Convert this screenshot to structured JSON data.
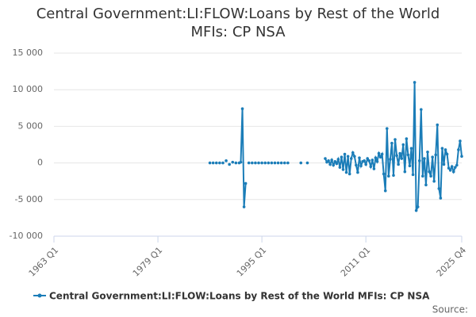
{
  "chart_data": {
    "type": "line",
    "title": "Central Government:LI:FLOW:Loans by Rest of the World MFIs: CP NSA",
    "source_label": "Source:",
    "xlim": [
      1963,
      2025.75
    ],
    "xticks": [
      {
        "value": 1963,
        "label": "1963 Q1"
      },
      {
        "value": 1979,
        "label": "1979 Q1"
      },
      {
        "value": 1995,
        "label": "1995 Q1"
      },
      {
        "value": 2011,
        "label": "2011 Q1"
      },
      {
        "value": 2025.75,
        "label": "2025 Q4"
      }
    ],
    "ylim": [
      -10000,
      15000
    ],
    "yticks": [
      {
        "value": -10000,
        "label": "-10 000"
      },
      {
        "value": -5000,
        "label": "-5 000"
      },
      0,
      {
        "value": 5000,
        "label": "5 000"
      },
      {
        "value": 10000,
        "label": "10 000"
      },
      {
        "value": 15000,
        "label": "15 000"
      }
    ],
    "grid": true,
    "x": [
      1987,
      1987.25,
      1987.5,
      1987.75,
      1988,
      1988.25,
      1988.5,
      1988.75,
      1989,
      1989.25,
      1989.5,
      1989.75,
      1990,
      1990.25,
      1990.5,
      1990.75,
      1991,
      1991.25,
      1991.5,
      1991.75,
      1992,
      1992.25,
      1992.5,
      1992.75,
      1993,
      1993.25,
      1993.5,
      1993.75,
      1994,
      1994.25,
      1994.5,
      1994.75,
      1995,
      1995.25,
      1995.5,
      1995.75,
      1996,
      1996.25,
      1996.5,
      1996.75,
      1997,
      1997.25,
      1997.5,
      1997.75,
      1998,
      1998.25,
      1998.5,
      1998.75,
      1999,
      1999.25,
      2001,
      2001.25,
      2002,
      2002.25,
      2004.75,
      2005,
      2005.25,
      2005.5,
      2005.75,
      2006,
      2006.25,
      2006.5,
      2006.75,
      2007,
      2007.25,
      2007.5,
      2007.75,
      2008,
      2008.25,
      2008.5,
      2008.75,
      2009,
      2009.25,
      2009.5,
      2009.75,
      2010,
      2010.25,
      2010.5,
      2010.75,
      2011,
      2011.25,
      2011.5,
      2011.75,
      2012,
      2012.25,
      2012.5,
      2012.75,
      2013,
      2013.25,
      2013.5,
      2013.75,
      2014,
      2014.25,
      2014.5,
      2014.75,
      2015,
      2015.25,
      2015.5,
      2015.75,
      2016,
      2016.25,
      2016.5,
      2016.75,
      2017,
      2017.25,
      2017.5,
      2017.75,
      2018,
      2018.25,
      2018.5,
      2018.75,
      2019,
      2019.25,
      2019.5,
      2019.75,
      2020,
      2020.25,
      2020.5,
      2020.75,
      2021,
      2021.25,
      2021.5,
      2021.75,
      2022,
      2022.25,
      2022.5,
      2022.75,
      2023,
      2023.25,
      2023.5,
      2023.75,
      2024,
      2024.25,
      2024.5,
      2024.75,
      2025,
      2025.25,
      2025.5,
      2025.75
    ],
    "series": [
      {
        "name": "Central Government:LI:FLOW:Loans by Rest of the World MFIs: CP NSA",
        "color": "#1b7db8",
        "values": [
          0,
          null,
          0,
          null,
          0,
          null,
          0,
          null,
          0,
          null,
          300,
          null,
          -200,
          null,
          100,
          null,
          0,
          null,
          0,
          100,
          7400,
          -6000,
          -2800,
          null,
          0,
          null,
          0,
          null,
          0,
          null,
          0,
          null,
          0,
          null,
          0,
          null,
          0,
          null,
          0,
          null,
          0,
          null,
          0,
          null,
          0,
          null,
          0,
          null,
          0,
          null,
          0,
          null,
          0,
          null,
          600,
          100,
          300,
          -200,
          400,
          -300,
          200,
          -100,
          500,
          -600,
          800,
          -900,
          1200,
          -1300,
          900,
          -1500,
          600,
          1400,
          900,
          -300,
          -1300,
          700,
          -400,
          200,
          300,
          -200,
          600,
          300,
          -500,
          400,
          -800,
          700,
          200,
          1300,
          800,
          1200,
          -1500,
          -3800,
          4700,
          -1800,
          500,
          2700,
          -1700,
          3200,
          1000,
          -200,
          1300,
          600,
          2500,
          -1200,
          3300,
          1100,
          -400,
          2000,
          -1600,
          11000,
          -6500,
          -6000,
          300,
          7300,
          -1800,
          600,
          -3000,
          1500,
          -1200,
          -1800,
          800,
          -2500,
          1100,
          5200,
          -3500,
          -4800,
          2000,
          -200,
          1800,
          1200,
          -700,
          -1000,
          -500,
          -1200,
          -600,
          -300,
          1800,
          3000,
          900
        ]
      }
    ]
  }
}
